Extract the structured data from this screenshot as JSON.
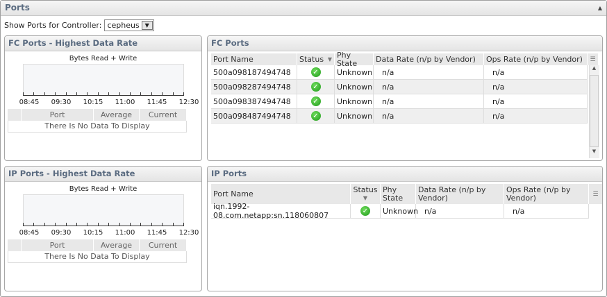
{
  "header": {
    "title": "Ports"
  },
  "controller": {
    "label": "Show Ports for Controller:",
    "value": "cepheus"
  },
  "fc_chart": {
    "title": "FC Ports - Highest Data Rate",
    "chart_title": "Bytes Read + Write",
    "ticks": [
      "08:45",
      "09:30",
      "10:15",
      "11:00",
      "11:45",
      "12:30"
    ],
    "columns": [
      "Port",
      "Average",
      "Current"
    ],
    "empty": "There Is No Data To Display"
  },
  "ip_chart": {
    "title": "IP Ports - Highest Data Rate",
    "chart_title": "Bytes Read + Write",
    "ticks": [
      "08:45",
      "09:30",
      "10:15",
      "11:00",
      "11:45",
      "12:30"
    ],
    "columns": [
      "Port",
      "Average",
      "Current"
    ],
    "empty": "There Is No Data To Display"
  },
  "fc_ports": {
    "title": "FC Ports",
    "columns": [
      "Port Name",
      "Status",
      "Phy State",
      "Data Rate (n/p by Vendor)",
      "Ops Rate (n/p by Vendor)"
    ],
    "rows": [
      {
        "name": "500a098187494748",
        "status": "ok",
        "phy": "Unknown",
        "data": "n/a",
        "ops": "n/a"
      },
      {
        "name": "500a098287494748",
        "status": "ok",
        "phy": "Unknown",
        "data": "n/a",
        "ops": "n/a"
      },
      {
        "name": "500a098387494748",
        "status": "ok",
        "phy": "Unknown",
        "data": "n/a",
        "ops": "n/a"
      },
      {
        "name": "500a098487494748",
        "status": "ok",
        "phy": "Unknown",
        "data": "n/a",
        "ops": "n/a"
      }
    ]
  },
  "ip_ports": {
    "title": "IP Ports",
    "columns": [
      "Port Name",
      "Status",
      "Phy State",
      "Data Rate (n/p by Vendor)",
      "Ops Rate (n/p by Vendor)"
    ],
    "rows": [
      {
        "name": "iqn.1992-08.com.netapp:sn.118060807",
        "status": "ok",
        "phy": "Unknown",
        "data": "n/a",
        "ops": "n/a"
      }
    ]
  },
  "colors": {
    "header_text": "#5a6b80",
    "status_ok": "#1f9a1a"
  }
}
